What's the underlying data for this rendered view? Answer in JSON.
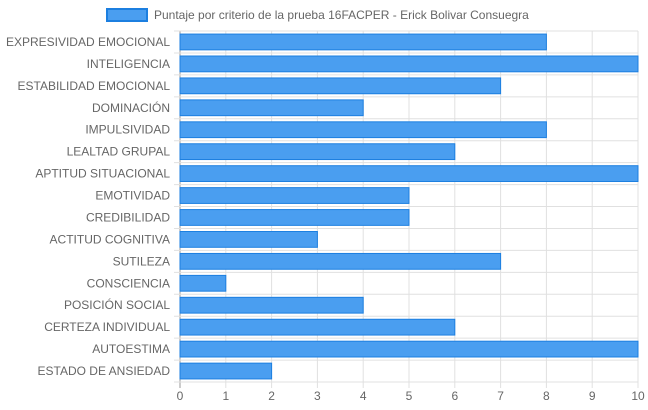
{
  "chart_data": {
    "type": "bar",
    "orientation": "horizontal",
    "categories": [
      "EXPRESIVIDAD EMOCIONAL",
      "INTELIGENCIA",
      "ESTABILIDAD EMOCIONAL",
      "DOMINACIÓN",
      "IMPULSIVIDAD",
      "LEALTAD GRUPAL",
      "APTITUD SITUACIONAL",
      "EMOTIVIDAD",
      "CREDIBILIDAD",
      "ACTITUD COGNITIVA",
      "SUTILEZA",
      "CONSCIENCIA",
      "POSICIÓN SOCIAL",
      "CERTEZA INDIVIDUAL",
      "AUTOESTIMA",
      "ESTADO DE ANSIEDAD"
    ],
    "series": [
      {
        "name": "Puntaje por criterio de la prueba 16FACPER - Erick Bolivar Consuegra",
        "values": [
          8,
          10,
          7,
          4,
          8,
          6,
          10,
          5,
          5,
          3,
          7,
          1,
          4,
          6,
          10,
          2
        ]
      }
    ],
    "xlim": [
      0,
      10
    ],
    "xticks": [
      0,
      1,
      2,
      3,
      4,
      5,
      6,
      7,
      8,
      9,
      10
    ],
    "grid": true,
    "legend_position": "top",
    "colors": {
      "bar_fill": "#4a9ef0",
      "bar_stroke": "#1c7fe0",
      "grid": "#e0e0e0",
      "text": "#666666"
    }
  }
}
